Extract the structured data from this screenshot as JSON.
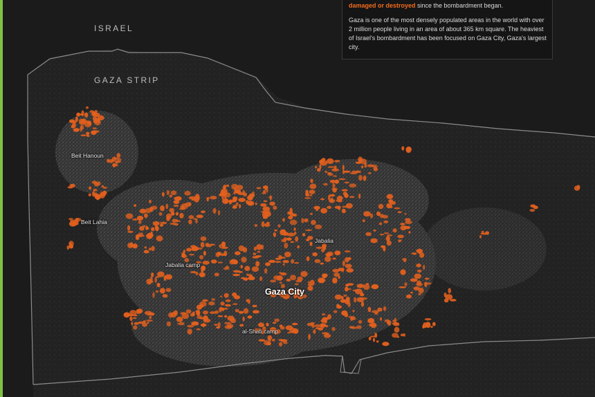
{
  "colors": {
    "damage": "#e2601e",
    "accent_bar": "#7fc241",
    "land": "#1e1e1e",
    "border": "#8c8c8c"
  },
  "regions": {
    "israel": "ISRAEL",
    "gaza_strip": "GAZA STRIP"
  },
  "info_box": {
    "highlight": "damaged or destroyed",
    "lead_rest": " since the bombardment began.",
    "paragraph": "Gaza is one of the most densely populated areas in the world with over 2 million people living in an area of about 365 km square. The heaviest of Israel's bombardment has been focused on Gaza City, Gaza's largest city."
  },
  "places": {
    "beit_hanoun": "Beit Hanoun",
    "beit_lahia": "Beit Lahia",
    "jabalia": "Jabalia",
    "jabalia_camp": "Jabalia camp",
    "gaza_city": "Gaza City",
    "al_shati_camp": "al-Shati camp"
  }
}
